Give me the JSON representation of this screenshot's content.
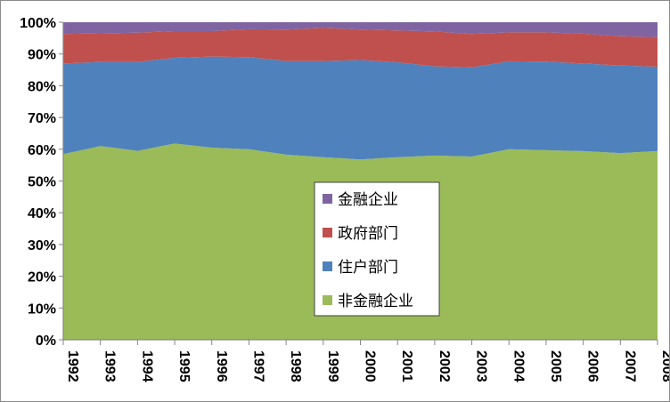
{
  "chart_data": {
    "type": "area",
    "stacking": "percent",
    "categories": [
      "1992",
      "1993",
      "1994",
      "1995",
      "1996",
      "1997",
      "1998",
      "1999",
      "2000",
      "2001",
      "2002",
      "2003",
      "2004",
      "2005",
      "2006",
      "2007",
      "2008"
    ],
    "series": [
      {
        "name": "非金融企业",
        "color": "#9bbb59",
        "values": [
          58.5,
          61.0,
          59.5,
          61.8,
          60.5,
          60.0,
          58.3,
          57.5,
          56.8,
          57.5,
          58.0,
          57.7,
          60.0,
          59.7,
          59.4,
          58.8,
          59.4
        ]
      },
      {
        "name": "住户部门",
        "color": "#4f81bd",
        "values": [
          28.5,
          26.5,
          28.0,
          27.0,
          28.7,
          29.0,
          29.5,
          30.3,
          31.3,
          29.9,
          28.1,
          28.1,
          27.7,
          27.9,
          27.6,
          27.6,
          26.6
        ]
      },
      {
        "name": "政府部门",
        "color": "#c0504d",
        "values": [
          9.3,
          9.0,
          9.2,
          8.4,
          8.0,
          8.8,
          9.9,
          10.4,
          9.6,
          10.0,
          11.0,
          10.5,
          9.1,
          9.2,
          9.4,
          9.2,
          9.3
        ]
      },
      {
        "name": "金融企业",
        "color": "#8064a2",
        "values": [
          3.7,
          3.5,
          3.3,
          2.8,
          2.8,
          2.2,
          2.3,
          1.8,
          2.3,
          2.6,
          2.9,
          3.7,
          3.2,
          3.2,
          3.6,
          4.4,
          4.7
        ]
      }
    ],
    "y_ticks": [
      "0%",
      "10%",
      "20%",
      "30%",
      "40%",
      "50%",
      "60%",
      "70%",
      "80%",
      "90%",
      "100%"
    ],
    "ylim": [
      0,
      100
    ],
    "legend_order": [
      "金融企业",
      "政府部门",
      "住户部门",
      "非金融企业"
    ],
    "legend_position": "center",
    "grid": false
  }
}
